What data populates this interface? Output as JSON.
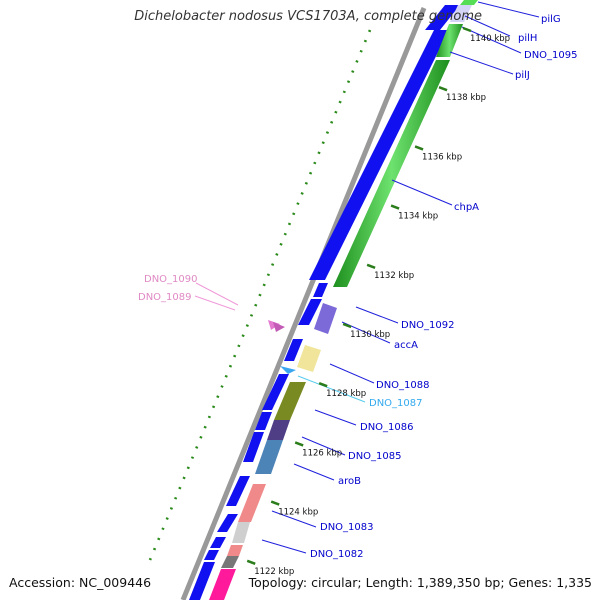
{
  "title": "Dichelobacter nodosus VCS1703A, complete genome",
  "footer": {
    "accession": "Accession: NC_009446",
    "summary": "Topology: circular; Length: 1,389,350 bp; Genes: 1,335"
  },
  "colors": {
    "backbone": "#999999",
    "tick": "#2a7d1a",
    "label_blue": "#0000cc",
    "label_pink": "#e089c4",
    "label_cyan": "#33aaee"
  },
  "ticks": [
    {
      "kbp": 1140,
      "label": "1140 kbp"
    },
    {
      "kbp": 1138,
      "label": "1138 kbp"
    },
    {
      "kbp": 1136,
      "label": "1136 kbp"
    },
    {
      "kbp": 1134,
      "label": "1134 kbp"
    },
    {
      "kbp": 1132,
      "label": "1132 kbp"
    },
    {
      "kbp": 1130,
      "label": "1130 kbp"
    },
    {
      "kbp": 1128,
      "label": "1128 kbp"
    },
    {
      "kbp": 1126,
      "label": "1126 kbp"
    },
    {
      "kbp": 1124,
      "label": "1124 kbp"
    },
    {
      "kbp": 1122,
      "label": "1122 kbp"
    }
  ],
  "gene_labels": [
    {
      "text": "pilG",
      "kind": "blue"
    },
    {
      "text": "pilH",
      "kind": "blue"
    },
    {
      "text": "DNO_1095",
      "kind": "blue"
    },
    {
      "text": "pilJ",
      "kind": "blue"
    },
    {
      "text": "chpA",
      "kind": "blue"
    },
    {
      "text": "DNO_1092",
      "kind": "blue"
    },
    {
      "text": "accA",
      "kind": "blue"
    },
    {
      "text": "DNO_1088",
      "kind": "blue"
    },
    {
      "text": "DNO_1087",
      "kind": "cyan"
    },
    {
      "text": "DNO_1086",
      "kind": "blue"
    },
    {
      "text": "DNO_1085",
      "kind": "blue"
    },
    {
      "text": "aroB",
      "kind": "blue"
    },
    {
      "text": "DNO_1083",
      "kind": "blue"
    },
    {
      "text": "DNO_1082",
      "kind": "blue"
    },
    {
      "text": "DNO_1090",
      "kind": "pink"
    },
    {
      "text": "DNO_1089",
      "kind": "pink"
    }
  ]
}
